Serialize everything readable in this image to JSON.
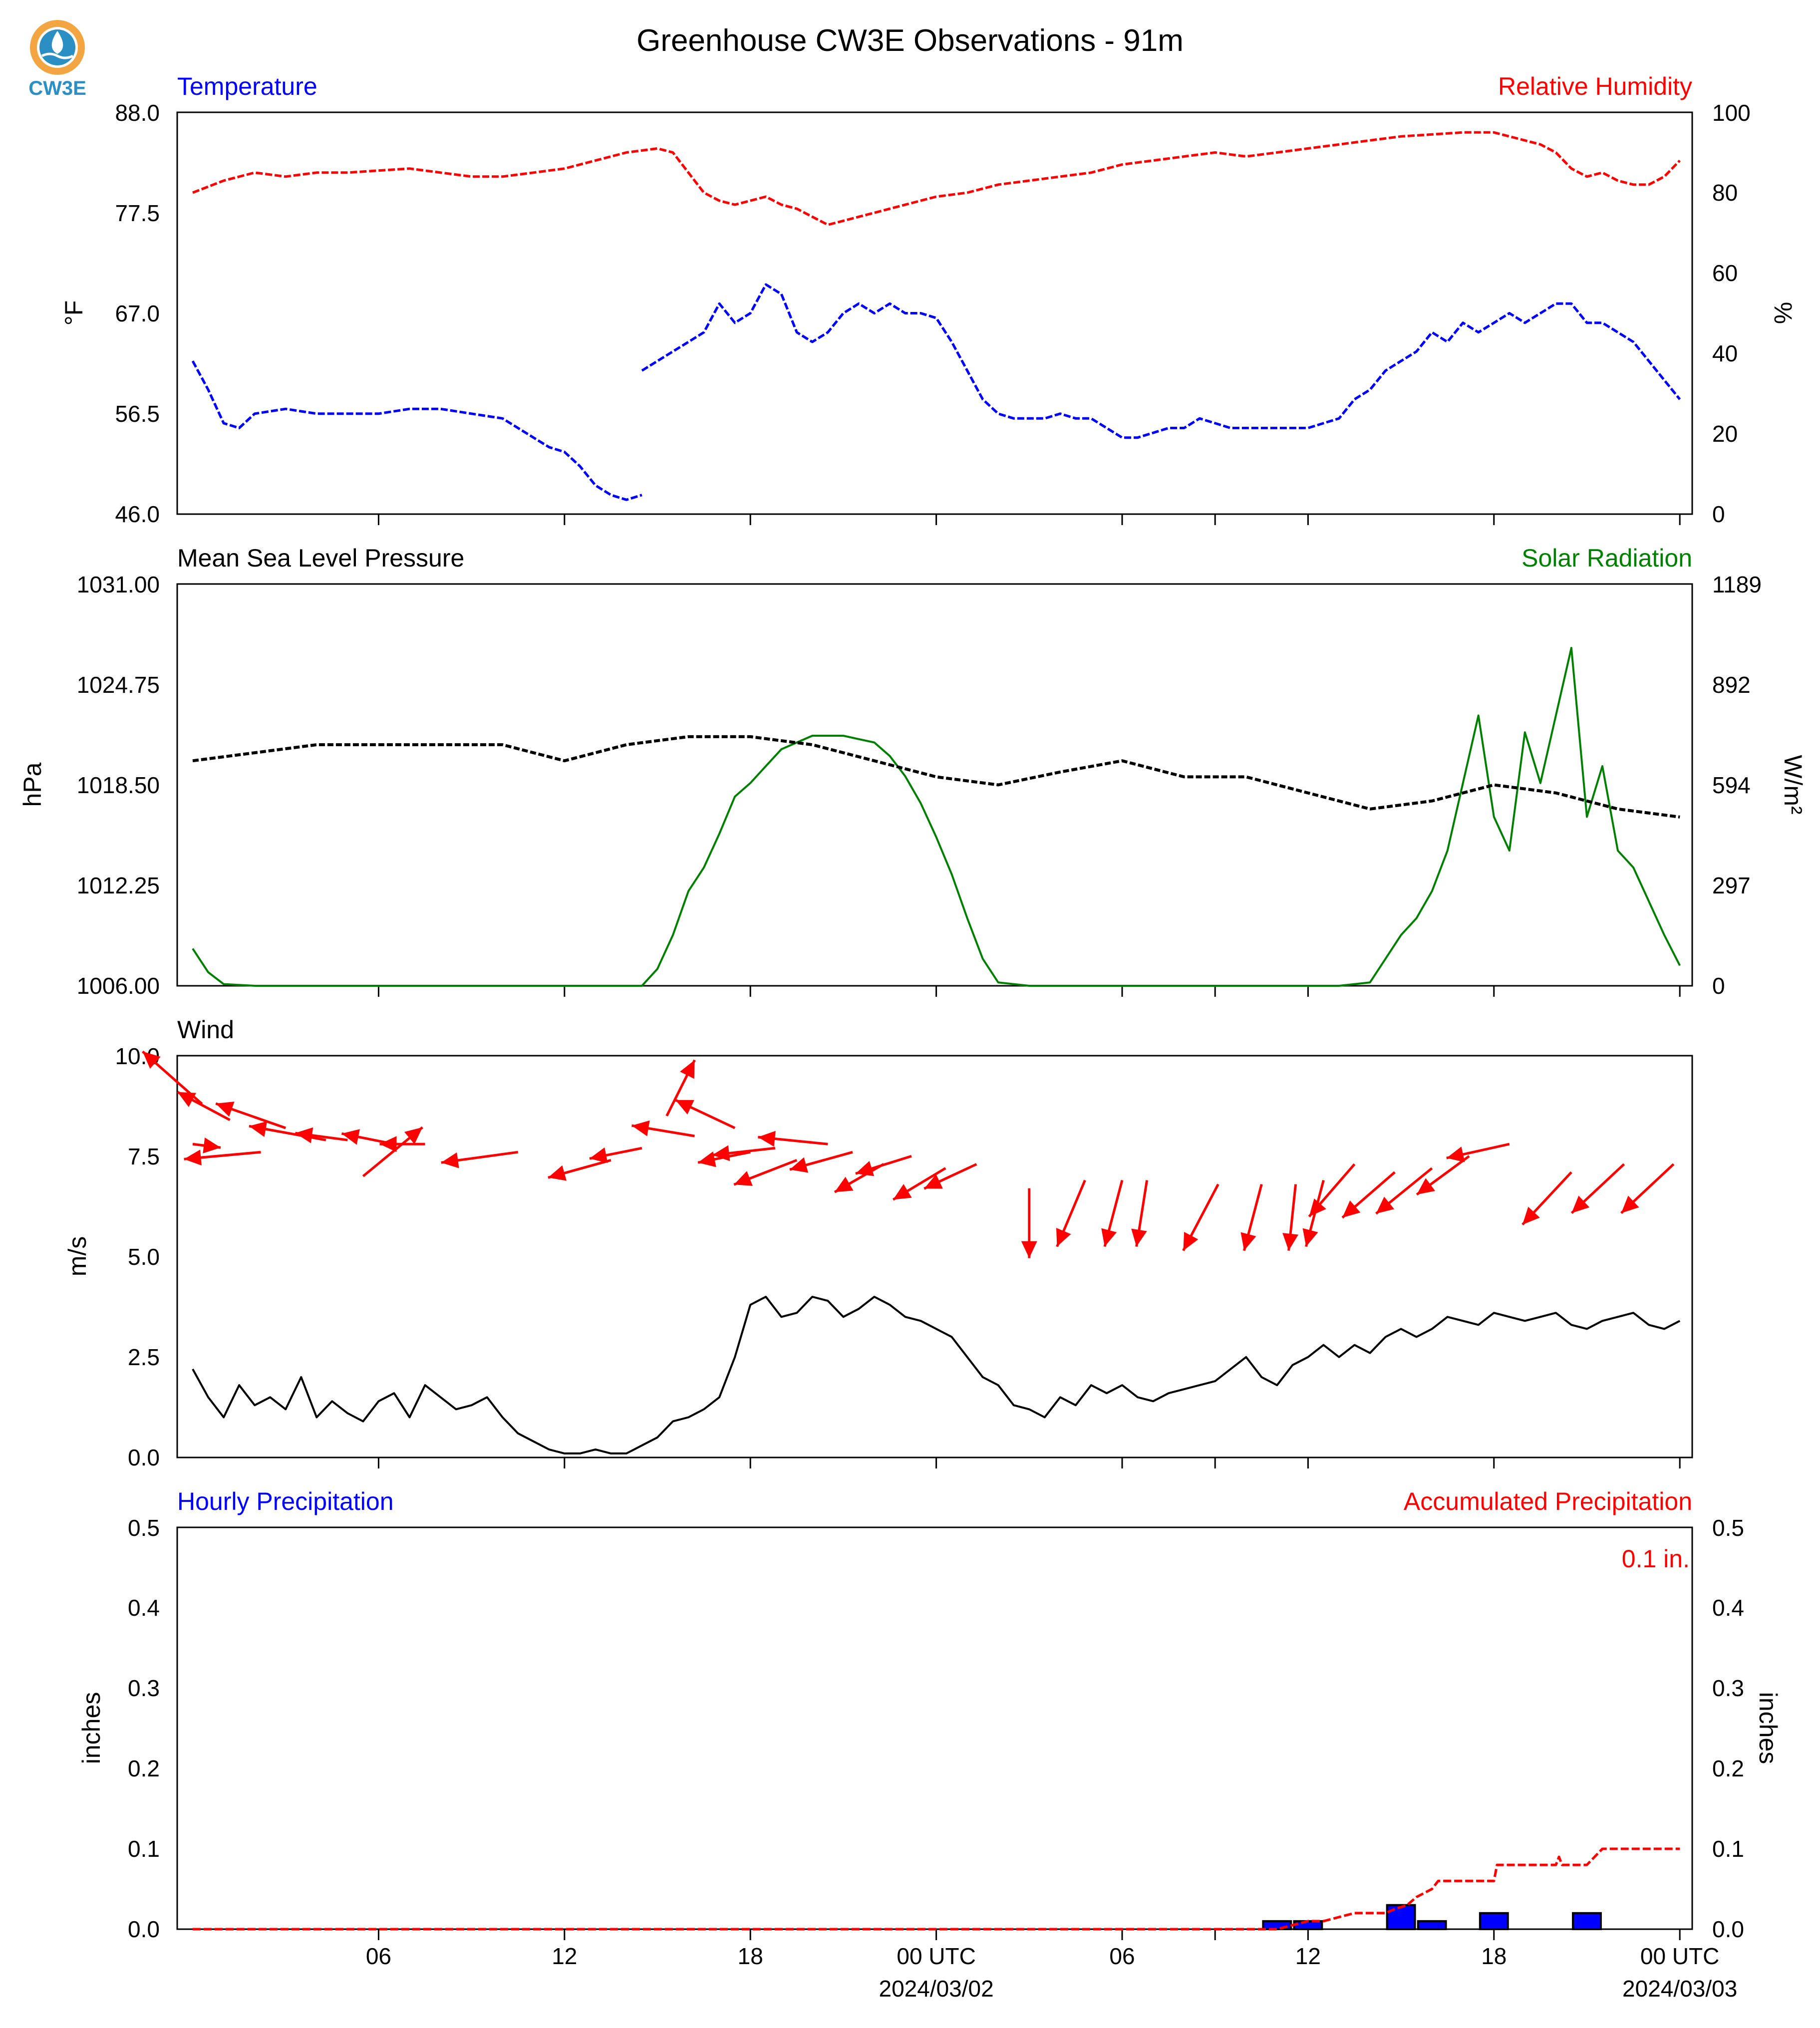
{
  "title": "Greenhouse CW3E Observations - 91m",
  "logo": {
    "text": "CW3E",
    "ring_color": "#f2a541",
    "drop_color": "#2b8fc4"
  },
  "colors": {
    "temperature": "#0000ff",
    "humidity": "#ff0000",
    "pressure": "#000000",
    "solar": "#008000",
    "wind_arrows": "#ff0000",
    "wind_speed": "#000000",
    "hourly_precip": "#0000ff",
    "accum_precip": "#ff0000"
  },
  "x_axis": {
    "tick_labels": [
      {
        "hour": 6,
        "label": "06"
      },
      {
        "hour": 12,
        "label": "12"
      },
      {
        "hour": 18,
        "label": "18"
      },
      {
        "hour": 24,
        "label": "00 UTC"
      },
      {
        "hour": 30,
        "label": "06"
      },
      {
        "hour": 36,
        "label": "12"
      },
      {
        "hour": 42,
        "label": "18"
      },
      {
        "hour": 48,
        "label": "00 UTC"
      }
    ],
    "minor_ticks": [
      6,
      12,
      18,
      24,
      30,
      33,
      36,
      42,
      48
    ],
    "date_labels": [
      {
        "hour": 24,
        "label": "2024/03/02"
      },
      {
        "hour": 48,
        "label": "2024/03/03"
      }
    ]
  },
  "chart_data": [
    {
      "type": "line",
      "panel": "temperature_humidity",
      "left_label": "Temperature",
      "right_label": "Relative Humidity",
      "ylabel_left": "°F",
      "ylabel_right": "%",
      "ylim_left": [
        46.0,
        88.0
      ],
      "ylim_right": [
        0,
        100
      ],
      "yticks_left": [
        "46.0",
        "56.5",
        "67.0",
        "77.5",
        "88.0"
      ],
      "yticks_right": [
        "0",
        "20",
        "40",
        "60",
        "80",
        "100"
      ],
      "series": [
        {
          "axis": "left",
          "x": [
            0,
            0.5,
            1,
            1.5,
            2,
            3,
            4,
            5,
            6,
            7,
            8,
            9,
            10,
            11,
            11.5,
            12,
            12.5,
            13,
            13.5,
            14,
            14.5
          ],
          "values": [
            62,
            59,
            55.5,
            55,
            56.5,
            57,
            56.5,
            56.5,
            56.5,
            57,
            57,
            56.5,
            56,
            54,
            53,
            52.5,
            51,
            49,
            48,
            47.5,
            48
          ]
        },
        {
          "axis": "left",
          "x": [
            14.5,
            15,
            15.5,
            16,
            16.5,
            17,
            17.5,
            18,
            18.5,
            19,
            19.5,
            20,
            20.5,
            21,
            21.5,
            22,
            22.5,
            23,
            23.5,
            24,
            24.5,
            25,
            25.5,
            26,
            26.5,
            27,
            27.5,
            28,
            28.5,
            29,
            29.5,
            30,
            30.5,
            31,
            31.5,
            32,
            32.5,
            33,
            33.5,
            34,
            34.5,
            35,
            35.5,
            36,
            36.5,
            37,
            37.5,
            38,
            38.5,
            39,
            39.5,
            40,
            40.5,
            41,
            41.5,
            42,
            42.5,
            43,
            43.5,
            44,
            44.5,
            45,
            45.5,
            46,
            46.5,
            47,
            47.5,
            48
          ],
          "values": [
            61,
            62,
            63,
            64,
            65,
            68,
            66,
            67,
            70,
            69,
            65,
            64,
            65,
            67,
            68,
            67,
            68,
            67,
            67,
            66.5,
            64,
            61,
            58,
            56.5,
            56,
            56,
            56,
            56.5,
            56,
            56,
            55,
            54,
            54,
            54.5,
            55,
            55,
            56,
            55.5,
            55,
            55,
            55,
            55,
            55,
            55,
            55.5,
            56,
            58,
            59,
            61,
            62,
            63,
            65,
            64,
            66,
            65,
            66,
            67,
            66,
            67,
            68,
            68,
            66,
            66,
            65,
            64,
            62,
            60,
            58
          ]
        }
      ]
    },
    {
      "type": "line",
      "panel": "temperature_humidity",
      "axis": "right",
      "x": [
        0,
        1,
        2,
        3,
        4,
        5,
        6,
        7,
        8,
        9,
        10,
        11,
        12,
        13,
        13.5,
        14,
        14.5,
        15,
        15.5,
        16,
        16.5,
        17,
        17.5,
        18,
        18.5,
        19,
        19.5,
        20,
        20.5,
        21,
        21.5,
        22,
        22.5,
        23,
        24,
        25,
        26,
        27,
        28,
        29,
        30,
        31,
        32,
        33,
        34,
        35,
        36,
        37,
        38,
        39,
        40,
        41,
        42,
        43,
        43.5,
        44,
        44.5,
        45,
        45.5,
        46,
        46.5,
        47,
        47.5,
        48
      ],
      "values": [
        80,
        83,
        85,
        84,
        85,
        85,
        85.5,
        86,
        85,
        84,
        84,
        85,
        86,
        88,
        89,
        90,
        90.5,
        91,
        90,
        85,
        80,
        78,
        77,
        78,
        79,
        77,
        76,
        74,
        72,
        73,
        74,
        75,
        76,
        77,
        79,
        80,
        82,
        83,
        84,
        85,
        87,
        88,
        89,
        90,
        89,
        90,
        91,
        92,
        93,
        94,
        94.5,
        95,
        95,
        93,
        92,
        90,
        86,
        84,
        85,
        83,
        82,
        82,
        84,
        88
      ]
    },
    {
      "type": "line",
      "panel": "pressure_solar",
      "left_label": "Mean Sea Level Pressure",
      "right_label": "Solar Radiation",
      "ylabel_left": "hPa",
      "ylabel_right": "W/m²",
      "ylim_left": [
        1006.0,
        1031.0
      ],
      "ylim_right": [
        0,
        1189
      ],
      "yticks_left": [
        "1006.00",
        "1012.25",
        "1018.50",
        "1024.75",
        "1031.00"
      ],
      "yticks_right": [
        "0",
        "297",
        "594",
        "892",
        "1189"
      ],
      "series": [
        {
          "name": "Mean Sea Level Pressure",
          "axis": "left",
          "x": [
            0,
            2,
            4,
            6,
            8,
            10,
            12,
            14,
            16,
            18,
            20,
            22,
            24,
            26,
            28,
            30,
            32,
            34,
            36,
            38,
            40,
            42,
            44,
            46,
            48
          ],
          "values": [
            1020,
            1020.5,
            1021,
            1021,
            1021,
            1021,
            1020,
            1021,
            1021.5,
            1021.5,
            1021,
            1020,
            1019,
            1018.5,
            1019.3,
            1020,
            1019,
            1019,
            1018,
            1017,
            1017.5,
            1018.5,
            1018,
            1017,
            1016.5
          ]
        },
        {
          "name": "Solar Radiation",
          "axis": "right",
          "x": [
            0,
            0.5,
            1,
            2,
            4,
            6,
            8,
            10,
            12,
            13,
            14,
            14.5,
            15,
            15.5,
            16,
            16.5,
            17,
            17.5,
            18,
            18.5,
            19,
            19.5,
            20,
            20.5,
            21,
            21.5,
            22,
            22.5,
            23,
            23.5,
            24,
            24.5,
            25,
            25.5,
            26,
            27,
            28,
            30,
            32,
            34,
            36,
            37,
            38,
            38.5,
            39,
            39.5,
            40,
            40.5,
            41,
            41.5,
            42,
            42.5,
            43,
            43.5,
            44,
            44.5,
            45,
            45.5,
            46,
            46.5,
            47,
            47.5,
            48
          ],
          "values": [
            110,
            40,
            5,
            0,
            0,
            0,
            0,
            0,
            0,
            0,
            0,
            0,
            50,
            150,
            280,
            350,
            450,
            560,
            600,
            650,
            700,
            720,
            740,
            740,
            740,
            730,
            720,
            680,
            620,
            540,
            440,
            330,
            200,
            80,
            10,
            0,
            0,
            0,
            0,
            0,
            0,
            0,
            10,
            80,
            150,
            200,
            280,
            400,
            600,
            800,
            500,
            400,
            750,
            600,
            800,
            1000,
            500,
            650,
            400,
            350,
            250,
            150,
            60
          ]
        }
      ]
    },
    {
      "type": "line",
      "panel": "wind",
      "left_label": "Wind",
      "ylabel_left": "m/s",
      "ylim_left": [
        0.0,
        10.0
      ],
      "yticks_left": [
        "0.0",
        "2.5",
        "5.0",
        "7.5",
        "10.0"
      ],
      "x": [
        0,
        0.5,
        1,
        1.5,
        2,
        2.5,
        3,
        3.5,
        4,
        4.5,
        5,
        5.5,
        6,
        6.5,
        7,
        7.5,
        8,
        8.5,
        9,
        9.5,
        10,
        10.5,
        11,
        11.5,
        12,
        12.5,
        13,
        13.5,
        14,
        14.5,
        15,
        15.5,
        16,
        16.5,
        17,
        17.5,
        18,
        18.5,
        19,
        19.5,
        20,
        20.5,
        21,
        21.5,
        22,
        22.5,
        23,
        23.5,
        24,
        24.5,
        25,
        25.5,
        26,
        26.5,
        27,
        27.5,
        28,
        28.5,
        29,
        29.5,
        30,
        30.5,
        31,
        31.5,
        32,
        32.5,
        33,
        33.5,
        34,
        34.5,
        35,
        35.5,
        36,
        36.5,
        37,
        37.5,
        38,
        38.5,
        39,
        39.5,
        40,
        40.5,
        41,
        41.5,
        42,
        42.5,
        43,
        43.5,
        44,
        44.5,
        45,
        45.5,
        46,
        46.5,
        47,
        47.5,
        48
      ],
      "values": [
        2.2,
        1.5,
        1.0,
        1.8,
        1.3,
        1.5,
        1.2,
        2.0,
        1.0,
        1.4,
        1.1,
        0.9,
        1.4,
        1.6,
        1.0,
        1.8,
        1.5,
        1.2,
        1.3,
        1.5,
        1.0,
        0.6,
        0.4,
        0.2,
        0.1,
        0.1,
        0.2,
        0.1,
        0.1,
        0.3,
        0.5,
        0.9,
        1.0,
        1.2,
        1.5,
        2.5,
        3.8,
        4.0,
        3.5,
        3.6,
        4.0,
        3.9,
        3.5,
        3.7,
        4.0,
        3.8,
        3.5,
        3.4,
        3.2,
        3.0,
        2.5,
        2.0,
        1.8,
        1.3,
        1.2,
        1.0,
        1.5,
        1.3,
        1.8,
        1.6,
        1.8,
        1.5,
        1.4,
        1.6,
        1.7,
        1.8,
        1.9,
        2.2,
        2.5,
        2.0,
        1.8,
        2.3,
        2.5,
        2.8,
        2.5,
        2.8,
        2.6,
        3.0,
        3.2,
        3.0,
        3.2,
        3.5,
        3.4,
        3.3,
        3.6,
        3.5,
        3.4,
        3.5,
        3.6,
        3.3,
        3.2,
        3.4,
        3.5,
        3.6,
        3.3,
        3.2,
        3.4
      ]
    },
    {
      "type": "quiver",
      "panel": "wind",
      "arrows": [
        {
          "hour": 0.0,
          "y": 7.8,
          "dx": 0.8,
          "dy": -0.1
        },
        {
          "hour": 0.3,
          "y": 8.8,
          "dx": -1.7,
          "dy": 1.5
        },
        {
          "hour": 1.2,
          "y": 8.4,
          "dx": -1.5,
          "dy": 0.8
        },
        {
          "hour": 2.2,
          "y": 7.6,
          "dx": -2.2,
          "dy": -0.2
        },
        {
          "hour": 3.0,
          "y": 8.2,
          "dx": -2.0,
          "dy": 0.7
        },
        {
          "hour": 4.3,
          "y": 7.9,
          "dx": -2.2,
          "dy": 0.4
        },
        {
          "hour": 5.0,
          "y": 7.9,
          "dx": -1.5,
          "dy": 0.2
        },
        {
          "hour": 5.5,
          "y": 7.0,
          "dx": 1.7,
          "dy": 1.4
        },
        {
          "hour": 6.5,
          "y": 7.8,
          "dx": -1.5,
          "dy": 0.3
        },
        {
          "hour": 7.5,
          "y": 7.8,
          "dx": -1.3,
          "dy": 0.0
        },
        {
          "hour": 10.5,
          "y": 7.6,
          "dx": -2.2,
          "dy": -0.3
        },
        {
          "hour": 13.5,
          "y": 7.4,
          "dx": -1.8,
          "dy": -0.5
        },
        {
          "hour": 14.5,
          "y": 7.7,
          "dx": -1.5,
          "dy": -0.3
        },
        {
          "hour": 15.3,
          "y": 8.5,
          "dx": 0.8,
          "dy": 1.6
        },
        {
          "hour": 16.2,
          "y": 8.0,
          "dx": -1.8,
          "dy": 0.3
        },
        {
          "hour": 17.5,
          "y": 8.2,
          "dx": -1.7,
          "dy": 0.8
        },
        {
          "hour": 18.0,
          "y": 7.6,
          "dx": -1.5,
          "dy": -0.3
        },
        {
          "hour": 18.8,
          "y": 7.7,
          "dx": -1.8,
          "dy": -0.2
        },
        {
          "hour": 19.5,
          "y": 7.4,
          "dx": -1.8,
          "dy": -0.7
        },
        {
          "hour": 20.5,
          "y": 7.8,
          "dx": -2.0,
          "dy": 0.2
        },
        {
          "hour": 21.3,
          "y": 7.6,
          "dx": -1.8,
          "dy": -0.5
        },
        {
          "hour": 22.3,
          "y": 7.3,
          "dx": -1.4,
          "dy": -0.8
        },
        {
          "hour": 23.2,
          "y": 7.5,
          "dx": -1.6,
          "dy": -0.5
        },
        {
          "hour": 24.3,
          "y": 7.2,
          "dx": -1.5,
          "dy": -0.9
        },
        {
          "hour": 25.3,
          "y": 7.3,
          "dx": -1.5,
          "dy": -0.7
        },
        {
          "hour": 27.0,
          "y": 6.7,
          "dx": 0.0,
          "dy": -2.0
        },
        {
          "hour": 28.8,
          "y": 6.9,
          "dx": -0.8,
          "dy": -1.9
        },
        {
          "hour": 30.0,
          "y": 6.9,
          "dx": -0.5,
          "dy": -1.9
        },
        {
          "hour": 30.8,
          "y": 6.9,
          "dx": -0.3,
          "dy": -1.9
        },
        {
          "hour": 33.1,
          "y": 6.8,
          "dx": -1.0,
          "dy": -1.9
        },
        {
          "hour": 34.5,
          "y": 6.8,
          "dx": -0.5,
          "dy": -1.9
        },
        {
          "hour": 35.6,
          "y": 6.8,
          "dx": -0.2,
          "dy": -1.9
        },
        {
          "hour": 36.5,
          "y": 6.9,
          "dx": -0.5,
          "dy": -1.9
        },
        {
          "hour": 37.5,
          "y": 7.3,
          "dx": -1.3,
          "dy": -1.5
        },
        {
          "hour": 38.8,
          "y": 7.1,
          "dx": -1.5,
          "dy": -1.3
        },
        {
          "hour": 40.0,
          "y": 7.2,
          "dx": -1.6,
          "dy": -1.3
        },
        {
          "hour": 41.2,
          "y": 7.5,
          "dx": -1.5,
          "dy": -1.1
        },
        {
          "hour": 42.5,
          "y": 7.8,
          "dx": -1.8,
          "dy": -0.4
        },
        {
          "hour": 44.5,
          "y": 7.1,
          "dx": -1.4,
          "dy": -1.5
        },
        {
          "hour": 46.2,
          "y": 7.3,
          "dx": -1.5,
          "dy": -1.4
        },
        {
          "hour": 47.8,
          "y": 7.3,
          "dx": -1.5,
          "dy": -1.4
        }
      ]
    },
    {
      "type": "bar",
      "panel": "precipitation",
      "left_label": "Hourly Precipitation",
      "right_label": "Accumulated Precipitation",
      "annotation": "0.1 in.",
      "ylabel_left": "inches",
      "ylabel_right": "inches",
      "ylim_left": [
        0.0,
        0.5
      ],
      "ylim_right": [
        0.0,
        0.5
      ],
      "yticks_left": [
        "0.0",
        "0.1",
        "0.2",
        "0.3",
        "0.4",
        "0.5"
      ],
      "yticks_right": [
        "0.0",
        "0.1",
        "0.2",
        "0.3",
        "0.4",
        "0.5"
      ],
      "bars": [
        {
          "hour": 35,
          "value": 0.01
        },
        {
          "hour": 36,
          "value": 0.01
        },
        {
          "hour": 39,
          "value": 0.03
        },
        {
          "hour": 40,
          "value": 0.01
        },
        {
          "hour": 42,
          "value": 0.02
        },
        {
          "hour": 45,
          "value": 0.02
        }
      ],
      "accumulated": {
        "x": [
          0,
          35,
          36,
          36.5,
          37.5,
          38.5,
          38.8,
          39.2,
          39.5,
          40,
          40.2,
          41,
          42,
          42.1,
          44,
          44.1,
          44.2,
          45,
          45.5,
          46,
          47,
          48
        ],
        "values": [
          0,
          0,
          0.01,
          0.01,
          0.02,
          0.02,
          0.025,
          0.03,
          0.04,
          0.05,
          0.06,
          0.06,
          0.06,
          0.08,
          0.08,
          0.09,
          0.08,
          0.08,
          0.1,
          0.1,
          0.1,
          0.1
        ]
      }
    }
  ]
}
